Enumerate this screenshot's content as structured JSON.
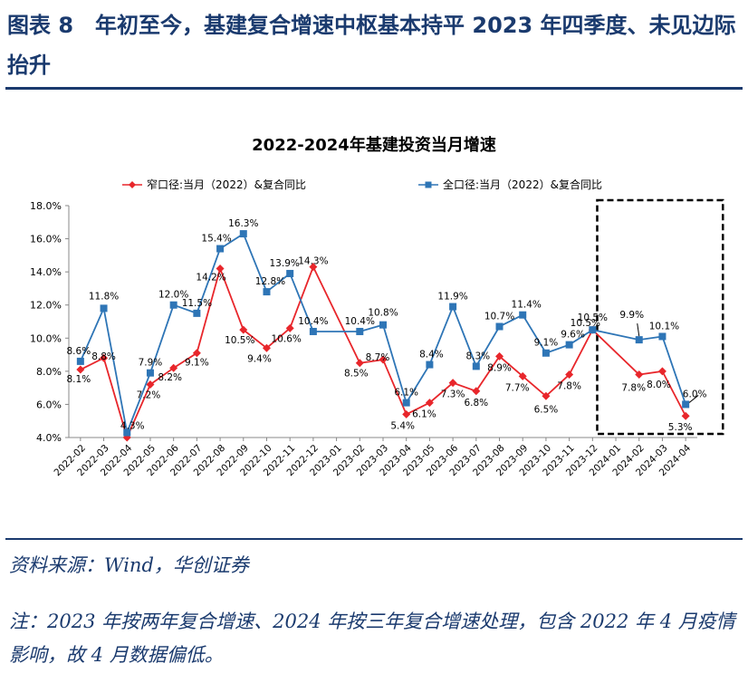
{
  "header": {
    "title": "图表 8　年初至今，基建复合增速中枢基本持平 2023 年四季度、未见边际抬升"
  },
  "chart_data": {
    "type": "line",
    "title": "2022-2024年基建投资当月增速",
    "categories": [
      "2022-02",
      "2022-03",
      "2022-04",
      "2022-05",
      "2022-06",
      "2022-07",
      "2022-08",
      "2022-09",
      "2022-10",
      "2022-11",
      "2022-12",
      "2023-01",
      "2023-02",
      "2023-03",
      "2023-04",
      "2023-05",
      "2023-06",
      "2023-07",
      "2023-08",
      "2023-09",
      "2023-10",
      "2023-11",
      "2023-12",
      "2024-01",
      "2024-02",
      "2024-03",
      "2024-04"
    ],
    "series": [
      {
        "name": "窄口径:当月（2022）&复合同比",
        "color": "#e8262b",
        "marker": "diamond",
        "values": [
          8.1,
          8.8,
          4.0,
          7.2,
          8.2,
          9.1,
          14.2,
          10.5,
          9.4,
          10.6,
          14.3,
          null,
          8.5,
          8.7,
          5.4,
          6.1,
          7.3,
          6.8,
          8.9,
          7.7,
          6.5,
          7.8,
          10.5,
          null,
          7.8,
          8.0,
          5.3
        ],
        "labels": [
          "8.1%",
          "8.8%",
          "",
          "7.2%",
          "8.2%",
          "9.1%",
          "14.2%",
          "10.5%",
          "9.4%",
          "10.6%",
          "14.3%",
          "",
          "8.5%",
          "8.7%",
          "5.4%",
          "6.1%",
          "7.3%",
          "6.8%",
          "8.9%",
          "7.7%",
          "6.5%",
          "7.8%",
          "10.5%",
          "",
          "7.8%",
          "8.0%",
          "5.3%"
        ]
      },
      {
        "name": "全口径:当月（2022）&复合同比",
        "color": "#2e75b6",
        "marker": "square",
        "values": [
          8.6,
          11.8,
          4.3,
          7.9,
          12.0,
          11.5,
          15.4,
          16.3,
          12.8,
          13.9,
          10.4,
          null,
          10.4,
          10.8,
          6.1,
          8.4,
          11.9,
          8.3,
          10.7,
          11.4,
          9.1,
          9.6,
          10.5,
          null,
          9.9,
          10.1,
          6.0
        ],
        "labels": [
          "8.6%",
          "11.8%",
          "4.3%",
          "7.9%",
          "12.0%",
          "11.5%",
          "15.4%",
          "16.3%",
          "12.8%",
          "13.9%",
          "10.4%",
          "",
          "10.4%",
          "10.8%",
          "6.1%",
          "8.4%",
          "11.9%",
          "8.3%",
          "10.7%",
          "11.4%",
          "9.1%",
          "9.6%",
          "10.5%",
          "",
          "9.9%",
          "10.1%",
          "6.0%"
        ]
      }
    ],
    "ylim": [
      4.0,
      18.0
    ],
    "yticks": [
      "4.0%",
      "6.0%",
      "8.0%",
      "10.0%",
      "12.0%",
      "14.0%",
      "16.0%",
      "18.0%"
    ],
    "ytick_values": [
      4,
      6,
      8,
      10,
      12,
      14,
      16,
      18
    ],
    "grid": false,
    "legend_position": "top",
    "highlight_range": [
      "2024-01",
      "2024-04"
    ]
  },
  "footer": {
    "source": "资料来源：Wind，华创证券",
    "note": "注：2023 年按两年复合增速、2024 年按三年复合增速处理，包含 2022 年 4 月疫情影响，故 4 月数据偏低。"
  }
}
